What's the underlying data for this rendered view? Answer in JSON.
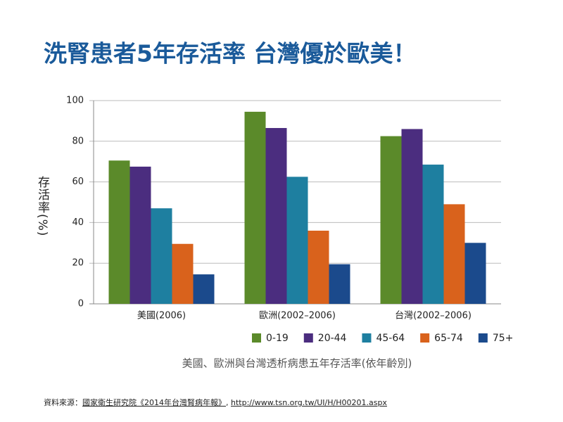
{
  "chart_data": {
    "type": "bar",
    "title": "洗腎患者5年存活率 台灣優於歐美！",
    "y_label": "存活率(%)",
    "caption": "美國、歐洲與台灣透析病患五年存活率(依年齡別)",
    "source": [
      "資料來源：",
      "國家衛生研究院《2014年台灣腎病年報》",
      ", ",
      "http://www.tsn.org.tw/UI/H/H00201.aspx"
    ],
    "categories": [
      "美國(2006)",
      "歐洲(2002–2006)",
      "台灣(2002–2006)"
    ],
    "series": [
      {
        "name": "0-19",
        "color": "#5b8a2a",
        "values": [
          70.5,
          94.5,
          82.5
        ]
      },
      {
        "name": "20-44",
        "color": "#4b2d7f",
        "values": [
          67.5,
          86.5,
          86
        ]
      },
      {
        "name": "45-64",
        "color": "#1e7fa0",
        "values": [
          47,
          62.5,
          68.5
        ]
      },
      {
        "name": "65-74",
        "color": "#d9621c",
        "values": [
          29.5,
          36,
          49
        ]
      },
      {
        "name": "75+",
        "color": "#1b4a8c",
        "values": [
          14.5,
          19.5,
          30
        ]
      }
    ],
    "ylim": [
      0,
      100
    ],
    "yticks": [
      0,
      20,
      40,
      60,
      80,
      100
    ],
    "grid": true,
    "legend": "bottom"
  }
}
